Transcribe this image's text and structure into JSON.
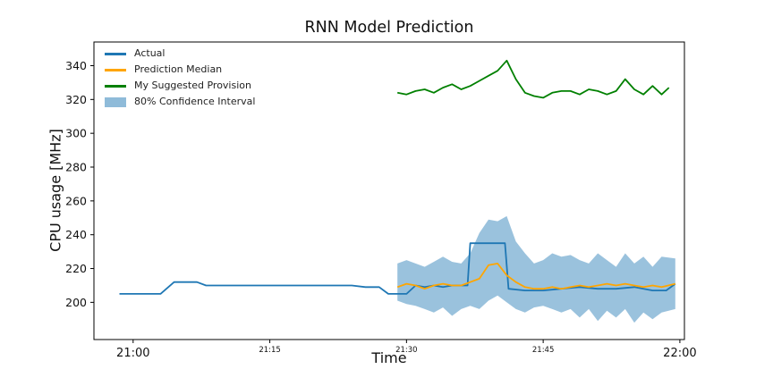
{
  "chart_data": {
    "type": "line",
    "title": "RNN Model Prediction",
    "xlabel": "Time",
    "ylabel": "CPU usage [MHz]",
    "xlim_minutes": [
      -4.3,
      60.5
    ],
    "ylim": [
      178,
      354
    ],
    "x_ticks": [
      {
        "minute": 0,
        "label": "21:00",
        "major": true
      },
      {
        "minute": 15,
        "label": "21:15",
        "major": false
      },
      {
        "minute": 30,
        "label": "21:30",
        "major": false
      },
      {
        "minute": 45,
        "label": "21:45",
        "major": false
      },
      {
        "minute": 60,
        "label": "22:00",
        "major": true
      }
    ],
    "y_ticks": [
      200,
      220,
      240,
      260,
      280,
      300,
      320,
      340
    ],
    "legend": [
      {
        "label": "Actual",
        "color": "#1f77b4",
        "type": "line"
      },
      {
        "label": "Prediction Median",
        "color": "#ffa500",
        "type": "line"
      },
      {
        "label": "My Suggested Provision",
        "color": "#008000",
        "type": "line"
      },
      {
        "label": "80% Confidence Interval",
        "color": "rgba(31,119,180,0.5)",
        "type": "band"
      }
    ],
    "band": {
      "fill": "rgba(31,119,180,0.45)",
      "x": [
        29,
        30,
        31,
        32,
        33,
        34,
        35,
        36,
        37,
        38,
        39,
        40,
        41,
        42,
        43,
        44,
        45,
        46,
        47,
        48,
        49,
        50,
        51,
        52,
        53,
        54,
        55,
        56,
        57,
        58,
        59.5
      ],
      "lower": [
        201,
        199,
        198,
        196,
        194,
        197,
        192,
        196,
        198,
        196,
        201,
        204,
        200,
        196,
        194,
        197,
        198,
        196,
        194,
        196,
        191,
        196,
        189,
        195,
        191,
        196,
        188,
        194,
        190,
        194,
        196
      ],
      "upper": [
        223,
        225,
        223,
        221,
        224,
        227,
        224,
        223,
        229,
        241,
        249,
        248,
        251,
        236,
        229,
        223,
        225,
        229,
        227,
        228,
        225,
        223,
        229,
        225,
        221,
        229,
        223,
        227,
        221,
        227,
        226
      ]
    },
    "series": [
      {
        "name": "Actual",
        "color": "#1f77b4",
        "points": [
          [
            -1.5,
            205
          ],
          [
            3,
            205
          ],
          [
            4.5,
            212
          ],
          [
            7,
            212
          ],
          [
            8,
            210
          ],
          [
            24,
            210
          ],
          [
            25.5,
            209
          ],
          [
            27,
            209
          ],
          [
            28,
            205
          ],
          [
            30,
            205
          ],
          [
            31,
            210
          ],
          [
            32,
            209
          ],
          [
            33,
            210
          ],
          [
            34,
            209
          ],
          [
            35,
            210
          ],
          [
            36.7,
            210
          ],
          [
            37,
            235
          ],
          [
            40.8,
            235
          ],
          [
            41.2,
            208
          ],
          [
            43,
            207
          ],
          [
            45,
            207
          ],
          [
            47,
            208
          ],
          [
            49,
            209
          ],
          [
            51,
            208
          ],
          [
            53,
            208
          ],
          [
            55,
            209
          ],
          [
            57,
            207
          ],
          [
            58.5,
            207
          ],
          [
            59.5,
            211
          ]
        ]
      },
      {
        "name": "Prediction Median",
        "color": "#ffa500",
        "points": [
          [
            29,
            209
          ],
          [
            30,
            211
          ],
          [
            31,
            210
          ],
          [
            32,
            208
          ],
          [
            33,
            210
          ],
          [
            34,
            211
          ],
          [
            35,
            210
          ],
          [
            36,
            210
          ],
          [
            37,
            212
          ],
          [
            38,
            214
          ],
          [
            39,
            222
          ],
          [
            40,
            223
          ],
          [
            41,
            216
          ],
          [
            42,
            212
          ],
          [
            43,
            209
          ],
          [
            44,
            208
          ],
          [
            45,
            208
          ],
          [
            46,
            209
          ],
          [
            47,
            208
          ],
          [
            48,
            209
          ],
          [
            49,
            210
          ],
          [
            50,
            209
          ],
          [
            51,
            210
          ],
          [
            52,
            211
          ],
          [
            53,
            210
          ],
          [
            54,
            211
          ],
          [
            55,
            210
          ],
          [
            56,
            209
          ],
          [
            57,
            210
          ],
          [
            58,
            209
          ],
          [
            59.5,
            211
          ]
        ]
      },
      {
        "name": "My Suggested Provision",
        "color": "#008000",
        "points": [
          [
            29,
            324
          ],
          [
            30,
            323
          ],
          [
            31,
            325
          ],
          [
            32,
            326
          ],
          [
            33,
            324
          ],
          [
            34,
            327
          ],
          [
            35,
            329
          ],
          [
            36,
            326
          ],
          [
            37,
            328
          ],
          [
            38,
            331
          ],
          [
            39,
            334
          ],
          [
            40,
            337
          ],
          [
            41,
            343
          ],
          [
            42,
            332
          ],
          [
            43,
            324
          ],
          [
            44,
            322
          ],
          [
            45,
            321
          ],
          [
            46,
            324
          ],
          [
            47,
            325
          ],
          [
            48,
            325
          ],
          [
            49,
            323
          ],
          [
            50,
            326
          ],
          [
            51,
            325
          ],
          [
            52,
            323
          ],
          [
            53,
            325
          ],
          [
            54,
            332
          ],
          [
            55,
            326
          ],
          [
            56,
            323
          ],
          [
            57,
            328
          ],
          [
            58,
            323
          ],
          [
            58.8,
            327
          ]
        ]
      }
    ]
  }
}
